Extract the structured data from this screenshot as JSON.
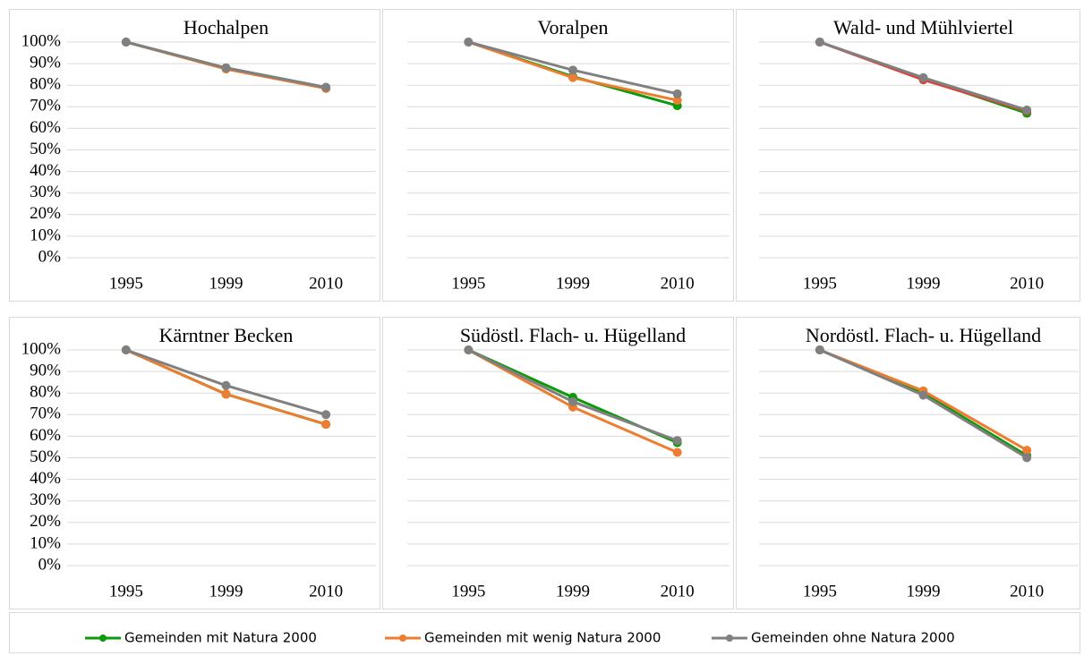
{
  "chart_data": [
    {
      "type": "line",
      "title": "Hochalpen",
      "categories": [
        "1995",
        "1999",
        "2010"
      ],
      "ylim": [
        0,
        100
      ],
      "yticks": [
        {
          "value": 0,
          "label": "0%"
        },
        {
          "value": 10,
          "label": "10%"
        },
        {
          "value": 20,
          "label": "20%"
        },
        {
          "value": 30,
          "label": "30%"
        },
        {
          "value": 40,
          "label": "40%"
        },
        {
          "value": 50,
          "label": "50%"
        },
        {
          "value": 60,
          "label": "60%"
        },
        {
          "value": 70,
          "label": "70%"
        },
        {
          "value": 80,
          "label": "80%"
        },
        {
          "value": 90,
          "label": "90%"
        },
        {
          "value": 100,
          "label": "100%"
        }
      ],
      "grid": true,
      "series": [
        {
          "name": "Gemeinden mit Natura 2000",
          "color": "#0a9a0a",
          "values": [
            100,
            88,
            79
          ]
        },
        {
          "name": "Gemeinden mit wenig Natura 2000",
          "color": "#ed7d31",
          "values": [
            100,
            87.5,
            78.5
          ]
        },
        {
          "name": "Gemeinden ohne Natura 2000",
          "color": "#808080",
          "values": [
            100,
            88,
            79
          ]
        }
      ]
    },
    {
      "type": "line",
      "title": "Voralpen",
      "categories": [
        "1995",
        "1999",
        "2010"
      ],
      "ylim": [
        0,
        100
      ],
      "yticks": [
        0,
        10,
        20,
        30,
        40,
        50,
        60,
        70,
        80,
        90,
        100
      ],
      "grid": true,
      "series": [
        {
          "name": "Gemeinden mit Natura 2000",
          "color": "#0a9a0a",
          "values": [
            100,
            84,
            70.5
          ]
        },
        {
          "name": "Gemeinden mit wenig Natura 2000",
          "color": "#ed7d31",
          "values": [
            100,
            83.5,
            73
          ]
        },
        {
          "name": "Gemeinden ohne Natura 2000",
          "color": "#808080",
          "values": [
            100,
            87,
            76
          ]
        }
      ]
    },
    {
      "type": "line",
      "title": "Wald- und Mühlviertel",
      "categories": [
        "1995",
        "1999",
        "2010"
      ],
      "ylim": [
        0,
        100
      ],
      "yticks": [
        0,
        10,
        20,
        30,
        40,
        50,
        60,
        70,
        80,
        90,
        100
      ],
      "grid": true,
      "series": [
        {
          "name": "Gemeinden mit Natura 2000",
          "color": "#0a9a0a",
          "values": [
            100,
            83,
            67
          ]
        },
        {
          "name": "Gemeinden mit wenig Natura 2000",
          "color": "#d9453a",
          "values": [
            100,
            82.5,
            68
          ]
        },
        {
          "name": "Gemeinden ohne Natura 2000",
          "color": "#808080",
          "values": [
            100,
            83.5,
            68.5
          ]
        }
      ]
    },
    {
      "type": "line",
      "title": "Kärntner Becken",
      "categories": [
        "1995",
        "1999",
        "2010"
      ],
      "ylim": [
        0,
        100
      ],
      "yticks": [
        {
          "value": 0,
          "label": "0%"
        },
        {
          "value": 10,
          "label": "10%"
        },
        {
          "value": 20,
          "label": "20%"
        },
        {
          "value": 30,
          "label": "30%"
        },
        {
          "value": 40,
          "label": "40%"
        },
        {
          "value": 50,
          "label": "50%"
        },
        {
          "value": 60,
          "label": "60%"
        },
        {
          "value": 70,
          "label": "70%"
        },
        {
          "value": 80,
          "label": "80%"
        },
        {
          "value": 90,
          "label": "90%"
        },
        {
          "value": 100,
          "label": "100%"
        }
      ],
      "grid": true,
      "series": [
        {
          "name": "Gemeinden mit Natura 2000",
          "color": "#0a9a0a",
          "values": [
            100,
            79.5,
            65.5
          ]
        },
        {
          "name": "Gemeinden mit wenig Natura 2000",
          "color": "#ed7d31",
          "values": [
            100,
            79.5,
            65.5
          ]
        },
        {
          "name": "Gemeinden ohne Natura 2000",
          "color": "#808080",
          "values": [
            100,
            83.5,
            70
          ]
        }
      ]
    },
    {
      "type": "line",
      "title": "Südöstl. Flach- u. Hügelland",
      "categories": [
        "1995",
        "1999",
        "2010"
      ],
      "ylim": [
        0,
        100
      ],
      "yticks": [
        0,
        10,
        20,
        30,
        40,
        50,
        60,
        70,
        80,
        90,
        100
      ],
      "grid": true,
      "series": [
        {
          "name": "Gemeinden mit Natura 2000",
          "color": "#0a9a0a",
          "values": [
            100,
            78,
            57
          ]
        },
        {
          "name": "Gemeinden mit wenig Natura 2000",
          "color": "#ed7d31",
          "values": [
            100,
            73.5,
            52.5
          ]
        },
        {
          "name": "Gemeinden ohne Natura 2000",
          "color": "#808080",
          "values": [
            100,
            76,
            58
          ]
        }
      ]
    },
    {
      "type": "line",
      "title": "Nordöstl. Flach- u. Hügelland",
      "categories": [
        "1995",
        "1999",
        "2010"
      ],
      "ylim": [
        0,
        100
      ],
      "yticks": [
        0,
        10,
        20,
        30,
        40,
        50,
        60,
        70,
        80,
        90,
        100
      ],
      "grid": true,
      "series": [
        {
          "name": "Gemeinden mit Natura 2000",
          "color": "#0a9a0a",
          "values": [
            100,
            80,
            51
          ]
        },
        {
          "name": "Gemeinden mit wenig Natura 2000",
          "color": "#ed7d31",
          "values": [
            100,
            81,
            53.5
          ]
        },
        {
          "name": "Gemeinden ohne Natura 2000",
          "color": "#808080",
          "values": [
            100,
            79,
            50
          ]
        }
      ]
    }
  ]
}
